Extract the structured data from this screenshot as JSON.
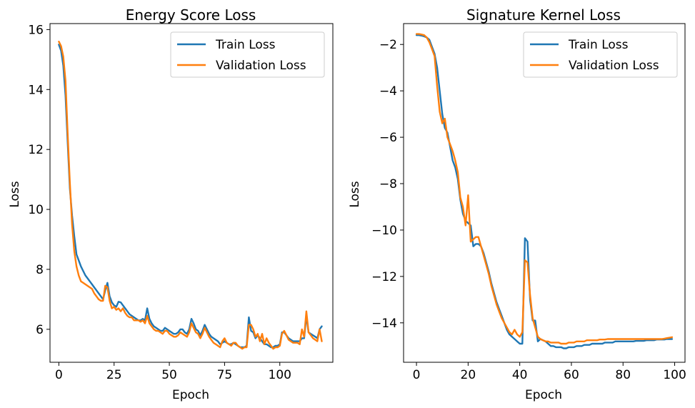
{
  "chart_data": [
    {
      "type": "line",
      "title": "Energy Score Loss",
      "xlabel": "Epoch",
      "ylabel": "Loss",
      "xlim": [
        -4,
        124
      ],
      "ylim": [
        4.9,
        16.2
      ],
      "xticks": [
        0,
        25,
        50,
        75,
        100
      ],
      "yticks": [
        6,
        8,
        10,
        12,
        14,
        16
      ],
      "legend": "top-right",
      "grid": false,
      "series": [
        {
          "name": "Train Loss",
          "color": "#1f77b4",
          "x": [
            0,
            1,
            2,
            3,
            4,
            5,
            6,
            7,
            8,
            9,
            10,
            11,
            12,
            13,
            14,
            15,
            16,
            17,
            18,
            19,
            20,
            21,
            22,
            23,
            24,
            25,
            26,
            27,
            28,
            29,
            30,
            31,
            32,
            33,
            34,
            35,
            36,
            37,
            38,
            39,
            40,
            41,
            42,
            43,
            44,
            45,
            46,
            47,
            48,
            49,
            50,
            51,
            52,
            53,
            54,
            55,
            56,
            57,
            58,
            59,
            60,
            61,
            62,
            63,
            64,
            65,
            66,
            67,
            68,
            69,
            70,
            71,
            72,
            73,
            74,
            75,
            76,
            77,
            78,
            79,
            80,
            81,
            82,
            83,
            84,
            85,
            86,
            87,
            88,
            89,
            90,
            91,
            92,
            93,
            94,
            95,
            96,
            97,
            98,
            99,
            100,
            101,
            102,
            103,
            104,
            105,
            106,
            107,
            108,
            109,
            110,
            111,
            112,
            113,
            114,
            115,
            116,
            117,
            118,
            119
          ],
          "y": [
            15.5,
            15.3,
            14.8,
            13.8,
            12.2,
            10.7,
            9.8,
            9.1,
            8.5,
            8.3,
            8.1,
            7.95,
            7.8,
            7.7,
            7.6,
            7.5,
            7.4,
            7.3,
            7.2,
            7.1,
            7.0,
            7.3,
            7.55,
            7.1,
            6.9,
            6.8,
            6.75,
            6.92,
            6.9,
            6.8,
            6.7,
            6.6,
            6.5,
            6.45,
            6.4,
            6.35,
            6.3,
            6.3,
            6.35,
            6.3,
            6.7,
            6.35,
            6.2,
            6.1,
            6.05,
            6.0,
            5.95,
            5.95,
            6.05,
            6.0,
            5.95,
            5.9,
            5.85,
            5.85,
            5.9,
            6.0,
            6.0,
            5.9,
            5.85,
            6.0,
            6.35,
            6.2,
            6.0,
            5.95,
            5.8,
            5.95,
            6.15,
            6.0,
            5.85,
            5.75,
            5.7,
            5.65,
            5.6,
            5.5,
            5.55,
            5.6,
            5.55,
            5.5,
            5.5,
            5.55,
            5.5,
            5.45,
            5.4,
            5.4,
            5.4,
            5.45,
            6.4,
            5.95,
            5.9,
            5.7,
            5.8,
            5.7,
            5.6,
            5.5,
            5.5,
            5.45,
            5.4,
            5.4,
            5.45,
            5.45,
            5.5,
            5.9,
            5.9,
            5.8,
            5.7,
            5.65,
            5.6,
            5.6,
            5.6,
            5.6,
            5.7,
            5.7,
            6.45,
            5.9,
            5.85,
            5.8,
            5.75,
            5.7,
            6.0,
            6.1
          ]
        },
        {
          "name": "Validation Loss",
          "color": "#ff7f0e",
          "x": [
            0,
            1,
            2,
            3,
            4,
            5,
            6,
            7,
            8,
            9,
            10,
            11,
            12,
            13,
            14,
            15,
            16,
            17,
            18,
            19,
            20,
            21,
            22,
            23,
            24,
            25,
            26,
            27,
            28,
            29,
            30,
            31,
            32,
            33,
            34,
            35,
            36,
            37,
            38,
            39,
            40,
            41,
            42,
            43,
            44,
            45,
            46,
            47,
            48,
            49,
            50,
            51,
            52,
            53,
            54,
            55,
            56,
            57,
            58,
            59,
            60,
            61,
            62,
            63,
            64,
            65,
            66,
            67,
            68,
            69,
            70,
            71,
            72,
            73,
            74,
            75,
            76,
            77,
            78,
            79,
            80,
            81,
            82,
            83,
            84,
            85,
            86,
            87,
            88,
            89,
            90,
            91,
            92,
            93,
            94,
            95,
            96,
            97,
            98,
            99,
            100,
            101,
            102,
            103,
            104,
            105,
            106,
            107,
            108,
            109,
            110,
            111,
            112,
            113,
            114,
            115,
            116,
            117,
            118,
            119
          ],
          "y": [
            15.6,
            15.45,
            15.1,
            14.3,
            12.5,
            10.9,
            9.5,
            8.6,
            8.1,
            7.8,
            7.6,
            7.55,
            7.5,
            7.45,
            7.4,
            7.35,
            7.2,
            7.1,
            7.0,
            6.95,
            6.95,
            7.45,
            7.4,
            6.95,
            6.7,
            6.75,
            6.65,
            6.7,
            6.6,
            6.7,
            6.55,
            6.45,
            6.4,
            6.4,
            6.3,
            6.3,
            6.3,
            6.25,
            6.3,
            6.2,
            6.45,
            6.2,
            6.1,
            6.0,
            5.95,
            5.95,
            5.9,
            5.85,
            5.95,
            5.95,
            5.85,
            5.8,
            5.75,
            5.75,
            5.8,
            5.9,
            5.85,
            5.8,
            5.75,
            5.9,
            6.2,
            6.05,
            5.9,
            5.85,
            5.7,
            5.85,
            6.05,
            5.9,
            5.75,
            5.65,
            5.55,
            5.5,
            5.45,
            5.4,
            5.6,
            5.7,
            5.55,
            5.5,
            5.45,
            5.55,
            5.55,
            5.45,
            5.4,
            5.35,
            5.4,
            5.4,
            6.15,
            6.15,
            6.0,
            5.75,
            5.85,
            5.6,
            5.85,
            5.5,
            5.7,
            5.55,
            5.45,
            5.35,
            5.4,
            5.4,
            5.45,
            5.85,
            5.95,
            5.8,
            5.65,
            5.6,
            5.55,
            5.55,
            5.55,
            5.5,
            6.0,
            5.75,
            6.6,
            5.9,
            5.8,
            5.7,
            5.65,
            5.6,
            6.0,
            5.6
          ]
        }
      ]
    },
    {
      "type": "line",
      "title": "Signature Kernel Loss",
      "xlabel": "Epoch",
      "ylabel": "Loss",
      "xlim": [
        -5,
        104
      ],
      "ylim": [
        -15.7,
        -1.1
      ],
      "xticks": [
        0,
        20,
        40,
        60,
        80,
        100
      ],
      "yticks": [
        -2,
        -4,
        -6,
        -8,
        -10,
        -12,
        -14
      ],
      "legend": "top-right",
      "grid": false,
      "series": [
        {
          "name": "Train Loss",
          "color": "#1f77b4",
          "x": [
            0,
            1,
            2,
            3,
            4,
            5,
            6,
            7,
            8,
            9,
            10,
            11,
            12,
            13,
            14,
            15,
            16,
            17,
            18,
            19,
            20,
            21,
            22,
            23,
            24,
            25,
            26,
            27,
            28,
            29,
            30,
            31,
            32,
            33,
            34,
            35,
            36,
            37,
            38,
            39,
            40,
            41,
            42,
            43,
            44,
            45,
            46,
            47,
            48,
            49,
            50,
            51,
            52,
            53,
            54,
            55,
            56,
            57,
            58,
            59,
            60,
            61,
            62,
            63,
            64,
            65,
            66,
            67,
            68,
            69,
            70,
            71,
            72,
            73,
            74,
            75,
            76,
            77,
            78,
            79,
            80,
            81,
            82,
            83,
            84,
            85,
            86,
            87,
            88,
            89,
            90,
            91,
            92,
            93,
            94,
            95,
            96,
            97,
            98,
            99
          ],
          "y": [
            -1.6,
            -1.6,
            -1.62,
            -1.65,
            -1.7,
            -1.8,
            -2.1,
            -2.4,
            -3.0,
            -4.0,
            -5.0,
            -5.6,
            -5.8,
            -6.4,
            -7.0,
            -7.3,
            -7.8,
            -8.7,
            -9.3,
            -9.6,
            -9.7,
            -9.8,
            -10.7,
            -10.6,
            -10.6,
            -10.7,
            -11.0,
            -11.4,
            -11.8,
            -12.3,
            -12.7,
            -13.1,
            -13.4,
            -13.7,
            -14.0,
            -14.3,
            -14.5,
            -14.6,
            -14.7,
            -14.8,
            -14.9,
            -14.9,
            -10.35,
            -10.5,
            -13.0,
            -13.9,
            -13.9,
            -14.8,
            -14.7,
            -14.75,
            -14.8,
            -14.9,
            -15.0,
            -15.0,
            -15.05,
            -15.05,
            -15.05,
            -15.1,
            -15.1,
            -15.05,
            -15.05,
            -15.05,
            -15.0,
            -15.0,
            -15.0,
            -14.95,
            -14.95,
            -14.95,
            -14.9,
            -14.9,
            -14.9,
            -14.9,
            -14.9,
            -14.85,
            -14.85,
            -14.85,
            -14.85,
            -14.8,
            -14.8,
            -14.8,
            -14.8,
            -14.8,
            -14.8,
            -14.8,
            -14.8,
            -14.78,
            -14.78,
            -14.78,
            -14.78,
            -14.75,
            -14.75,
            -14.75,
            -14.75,
            -14.72,
            -14.72,
            -14.72,
            -14.72,
            -14.7,
            -14.7,
            -14.7
          ]
        },
        {
          "name": "Validation Loss",
          "color": "#ff7f0e",
          "x": [
            0,
            1,
            2,
            3,
            4,
            5,
            6,
            7,
            8,
            9,
            10,
            11,
            12,
            13,
            14,
            15,
            16,
            17,
            18,
            19,
            20,
            21,
            22,
            23,
            24,
            25,
            26,
            27,
            28,
            29,
            30,
            31,
            32,
            33,
            34,
            35,
            36,
            37,
            38,
            39,
            40,
            41,
            42,
            43,
            44,
            45,
            46,
            47,
            48,
            49,
            50,
            51,
            52,
            53,
            54,
            55,
            56,
            57,
            58,
            59,
            60,
            61,
            62,
            63,
            64,
            65,
            66,
            67,
            68,
            69,
            70,
            71,
            72,
            73,
            74,
            75,
            76,
            77,
            78,
            79,
            80,
            81,
            82,
            83,
            84,
            85,
            86,
            87,
            88,
            89,
            90,
            91,
            92,
            93,
            94,
            95,
            96,
            97,
            98,
            99
          ],
          "y": [
            -1.55,
            -1.55,
            -1.57,
            -1.6,
            -1.7,
            -1.9,
            -2.2,
            -2.5,
            -3.8,
            -4.9,
            -5.4,
            -5.2,
            -6.0,
            -6.3,
            -6.6,
            -7.0,
            -7.5,
            -8.6,
            -9.0,
            -9.8,
            -8.5,
            -10.5,
            -10.4,
            -10.3,
            -10.3,
            -10.7,
            -11.1,
            -11.5,
            -11.9,
            -12.4,
            -12.8,
            -13.2,
            -13.5,
            -13.8,
            -14.0,
            -14.2,
            -14.4,
            -14.5,
            -14.3,
            -14.5,
            -14.6,
            -14.4,
            -11.3,
            -11.4,
            -12.8,
            -13.8,
            -14.2,
            -14.6,
            -14.7,
            -14.75,
            -14.8,
            -14.8,
            -14.85,
            -14.85,
            -14.85,
            -14.85,
            -14.9,
            -14.9,
            -14.9,
            -14.85,
            -14.85,
            -14.85,
            -14.8,
            -14.8,
            -14.8,
            -14.8,
            -14.75,
            -14.75,
            -14.75,
            -14.75,
            -14.75,
            -14.72,
            -14.72,
            -14.72,
            -14.7,
            -14.7,
            -14.7,
            -14.7,
            -14.7,
            -14.7,
            -14.7,
            -14.7,
            -14.7,
            -14.7,
            -14.7,
            -14.7,
            -14.7,
            -14.7,
            -14.7,
            -14.7,
            -14.7,
            -14.7,
            -14.7,
            -14.7,
            -14.7,
            -14.7,
            -14.68,
            -14.66,
            -14.64,
            -14.62
          ]
        }
      ]
    }
  ]
}
